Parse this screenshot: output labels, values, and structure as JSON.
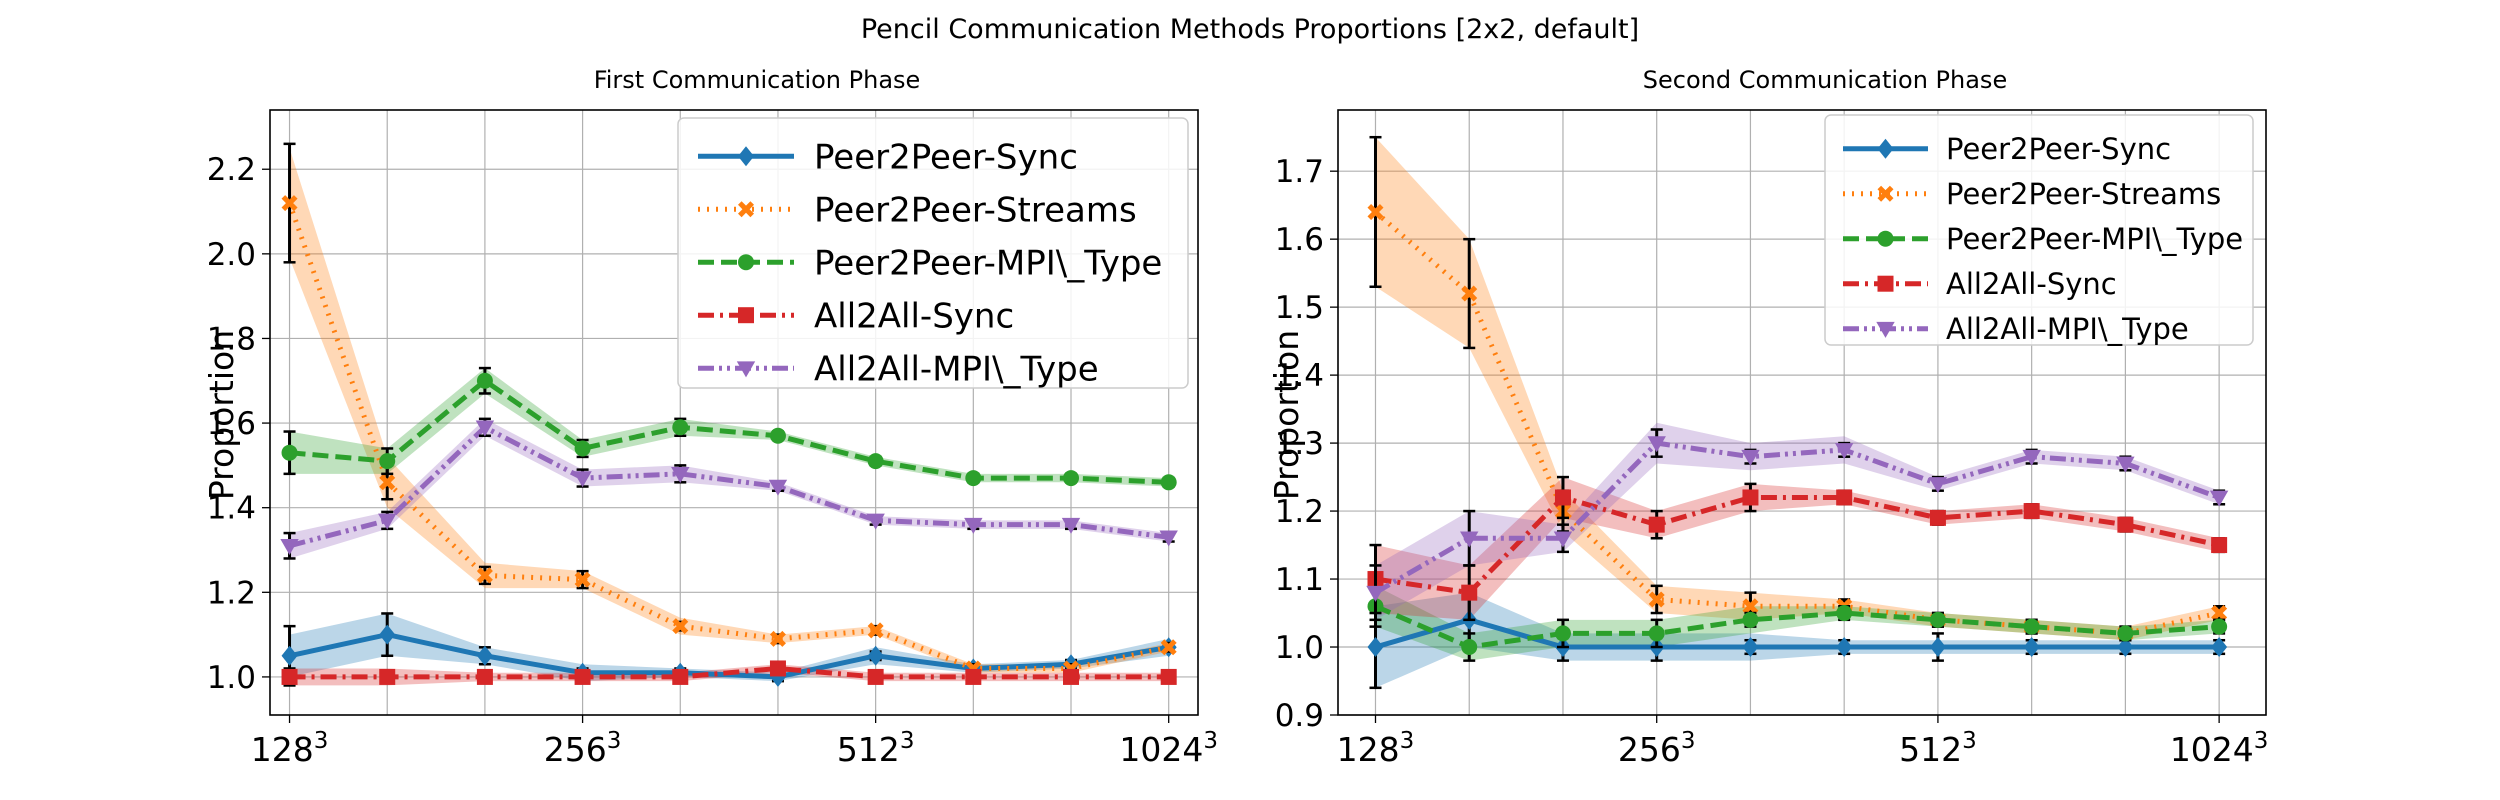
{
  "figure": {
    "title": "Pencil Communication Methods Proportions [2x2, default]"
  },
  "chart_data": [
    {
      "type": "line",
      "title": "First Communication Phase",
      "xlabel": "",
      "ylabel": "Proportion",
      "x": [
        1,
        2,
        3,
        4,
        5,
        6,
        7,
        8,
        9,
        10
      ],
      "xticks": [
        {
          "x": 1,
          "base": "128",
          "exp": "3"
        },
        {
          "x": 4,
          "base": "256",
          "exp": "3"
        },
        {
          "x": 7,
          "base": "512",
          "exp": "3"
        },
        {
          "x": 10,
          "base": "1024",
          "exp": "3"
        }
      ],
      "xlim": [
        0.8,
        10.3
      ],
      "ylim": [
        0.91,
        2.34
      ],
      "yticks": [
        "1.0",
        "1.2",
        "1.4",
        "1.6",
        "1.8",
        "2.0",
        "2.2"
      ],
      "grid": true,
      "legend_position": "top-right",
      "series": [
        {
          "name": "Peer2Peer-Sync",
          "color": "#1f77b4",
          "marker": "diamond",
          "dash": "solid",
          "values": [
            1.05,
            1.1,
            1.05,
            1.01,
            1.01,
            1.0,
            1.05,
            1.02,
            1.03,
            1.07
          ],
          "band": [
            0.05,
            0.05,
            0.02,
            0.02,
            0.01,
            0.01,
            0.02,
            0.01,
            0.01,
            0.02
          ],
          "err": [
            0.07,
            0.05,
            0.02,
            0.01,
            0.01,
            0.01,
            0.01,
            0.01,
            0.01,
            0.01
          ]
        },
        {
          "name": "Peer2Peer-Streams",
          "color": "#ff7f0e",
          "marker": "x",
          "dash": "dotted",
          "values": [
            2.12,
            1.46,
            1.24,
            1.23,
            1.12,
            1.09,
            1.11,
            1.02,
            1.02,
            1.07
          ],
          "band": [
            0.13,
            0.06,
            0.03,
            0.02,
            0.02,
            0.01,
            0.01,
            0.01,
            0.01,
            0.01
          ],
          "err": [
            0.14,
            0.04,
            0.02,
            0.02,
            0.01,
            0.01,
            0.01,
            0.01,
            0.01,
            0.01
          ]
        },
        {
          "name": "Peer2Peer-MPI\\_Type",
          "color": "#2ca02c",
          "marker": "circle",
          "dash": "dashed",
          "values": [
            1.53,
            1.51,
            1.7,
            1.54,
            1.59,
            1.57,
            1.51,
            1.47,
            1.47,
            1.46
          ],
          "band": [
            0.05,
            0.03,
            0.03,
            0.02,
            0.02,
            0.01,
            0.01,
            0.01,
            0.01,
            0.01
          ],
          "err": [
            0.05,
            0.03,
            0.03,
            0.02,
            0.02,
            0.01,
            0.01,
            0.01,
            0.01,
            0.01
          ]
        },
        {
          "name": "All2All-Sync",
          "color": "#d62728",
          "marker": "square",
          "dash": "dashdot",
          "values": [
            1.0,
            1.0,
            1.0,
            1.0,
            1.0,
            1.02,
            1.0,
            1.0,
            1.0,
            1.0
          ],
          "band": [
            0.02,
            0.02,
            0.01,
            0.01,
            0.01,
            0.01,
            0.01,
            0.01,
            0.01,
            0.01
          ],
          "err": [
            0.02,
            0.01,
            0.01,
            0.01,
            0.01,
            0.01,
            0.01,
            0.01,
            0.01,
            0.01
          ]
        },
        {
          "name": "All2All-MPI\\_Type",
          "color": "#9467bd",
          "marker": "triangle-down",
          "dash": "dashdotdot",
          "values": [
            1.31,
            1.37,
            1.59,
            1.47,
            1.48,
            1.45,
            1.37,
            1.36,
            1.36,
            1.33
          ],
          "band": [
            0.03,
            0.02,
            0.02,
            0.02,
            0.02,
            0.01,
            0.01,
            0.01,
            0.01,
            0.01
          ],
          "err": [
            0.03,
            0.02,
            0.02,
            0.02,
            0.02,
            0.01,
            0.01,
            0.01,
            0.01,
            0.01
          ]
        }
      ]
    },
    {
      "type": "line",
      "title": "Second Communication Phase",
      "xlabel": "",
      "ylabel": "Proportion",
      "x": [
        1,
        2,
        3,
        4,
        5,
        6,
        7,
        8,
        9,
        10
      ],
      "xticks": [
        {
          "x": 1,
          "base": "128",
          "exp": "3"
        },
        {
          "x": 4,
          "base": "256",
          "exp": "3"
        },
        {
          "x": 7,
          "base": "512",
          "exp": "3"
        },
        {
          "x": 10,
          "base": "1024",
          "exp": "3"
        }
      ],
      "xlim": [
        0.6,
        10.5
      ],
      "ylim": [
        0.9,
        1.79
      ],
      "yticks": [
        "0.9",
        "1.0",
        "1.1",
        "1.2",
        "1.3",
        "1.4",
        "1.5",
        "1.6",
        "1.7"
      ],
      "grid": true,
      "legend_position": "top-right",
      "series": [
        {
          "name": "Peer2Peer-Sync",
          "color": "#1f77b4",
          "marker": "diamond",
          "dash": "solid",
          "values": [
            1.0,
            1.04,
            1.0,
            1.0,
            1.0,
            1.0,
            1.0,
            1.0,
            1.0,
            1.0
          ],
          "band": [
            0.06,
            0.04,
            0.02,
            0.02,
            0.02,
            0.01,
            0.01,
            0.01,
            0.01,
            0.01
          ],
          "err": [
            0.06,
            0.04,
            0.02,
            0.02,
            0.01,
            0.01,
            0.02,
            0.01,
            0.01,
            0.01
          ]
        },
        {
          "name": "Peer2Peer-Streams",
          "color": "#ff7f0e",
          "marker": "x",
          "dash": "dotted",
          "values": [
            1.64,
            1.52,
            1.2,
            1.07,
            1.06,
            1.06,
            1.04,
            1.03,
            1.02,
            1.05
          ],
          "band": [
            0.11,
            0.08,
            0.03,
            0.02,
            0.02,
            0.01,
            0.01,
            0.01,
            0.01,
            0.01
          ],
          "err": [
            0.11,
            0.08,
            0.03,
            0.02,
            0.02,
            0.01,
            0.01,
            0.01,
            0.01,
            0.01
          ]
        },
        {
          "name": "Peer2Peer-MPI\\_Type",
          "color": "#2ca02c",
          "marker": "circle",
          "dash": "dashed",
          "values": [
            1.06,
            1.0,
            1.02,
            1.02,
            1.04,
            1.05,
            1.04,
            1.03,
            1.02,
            1.03
          ],
          "band": [
            0.03,
            0.02,
            0.02,
            0.02,
            0.02,
            0.01,
            0.01,
            0.01,
            0.01,
            0.01
          ],
          "err": [
            0.03,
            0.02,
            0.02,
            0.02,
            0.01,
            0.01,
            0.01,
            0.01,
            0.01,
            0.01
          ]
        },
        {
          "name": "All2All-Sync",
          "color": "#d62728",
          "marker": "square",
          "dash": "dashdot",
          "values": [
            1.1,
            1.08,
            1.22,
            1.18,
            1.22,
            1.22,
            1.19,
            1.2,
            1.18,
            1.15
          ],
          "band": [
            0.05,
            0.04,
            0.03,
            0.02,
            0.02,
            0.01,
            0.01,
            0.01,
            0.01,
            0.01
          ],
          "err": [
            0.05,
            0.04,
            0.03,
            0.02,
            0.02,
            0.01,
            0.01,
            0.01,
            0.01,
            0.01
          ]
        },
        {
          "name": "All2All-MPI\\_Type",
          "color": "#9467bd",
          "marker": "triangle-down",
          "dash": "dashdotdot",
          "values": [
            1.08,
            1.16,
            1.16,
            1.3,
            1.28,
            1.29,
            1.24,
            1.28,
            1.27,
            1.22
          ],
          "band": [
            0.04,
            0.04,
            0.02,
            0.03,
            0.02,
            0.02,
            0.01,
            0.01,
            0.01,
            0.01
          ],
          "err": [
            0.04,
            0.04,
            0.02,
            0.02,
            0.01,
            0.01,
            0.01,
            0.01,
            0.01,
            0.01
          ]
        }
      ]
    }
  ]
}
